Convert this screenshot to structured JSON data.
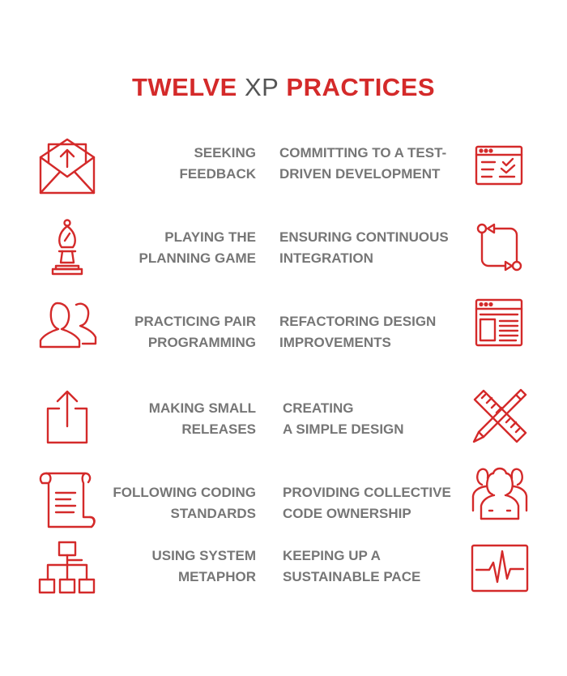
{
  "title": {
    "part1": "TWELVE",
    "part2": "XP",
    "part3": "PRACTICES"
  },
  "colors": {
    "accent": "#d42a2a",
    "title_gray": "#555555",
    "text": "#767676"
  },
  "practices": [
    {
      "text": "SEEKING\nFEEDBACK",
      "icon": "envelope-upload-icon"
    },
    {
      "text": "COMMITTING TO A TEST-\nDRIVEN DEVELOPMENT",
      "icon": "checklist-window-icon"
    },
    {
      "text": "PLAYING THE \nPLANNING GAME",
      "icon": "chess-bishop-icon"
    },
    {
      "text": "ENSURING CONTINUOUS\nINTEGRATION",
      "icon": "cycle-arrows-icon"
    },
    {
      "text": "PRACTICING PAIR\nPROGRAMMING",
      "icon": "pair-people-icon"
    },
    {
      "text": "REFACTORING DESIGN\nIMPROVEMENTS",
      "icon": "layout-window-icon"
    },
    {
      "text": "MAKING SMALL\nRELEASES",
      "icon": "share-upload-icon"
    },
    {
      "text": "CREATING\nA SIMPLE DESIGN",
      "icon": "pencil-ruler-icon"
    },
    {
      "text": "FOLLOWING CODING\nSTANDARDS",
      "icon": "scroll-document-icon"
    },
    {
      "text": "PROVIDING COLLECTIVE\nCODE OWNERSHIP",
      "icon": "group-people-icon"
    },
    {
      "text": "USING SYSTEM \nMETAPHOR",
      "icon": "hierarchy-icon"
    },
    {
      "text": "KEEPING UP A\nSUSTAINABLE PACE",
      "icon": "heartbeat-monitor-icon"
    }
  ]
}
